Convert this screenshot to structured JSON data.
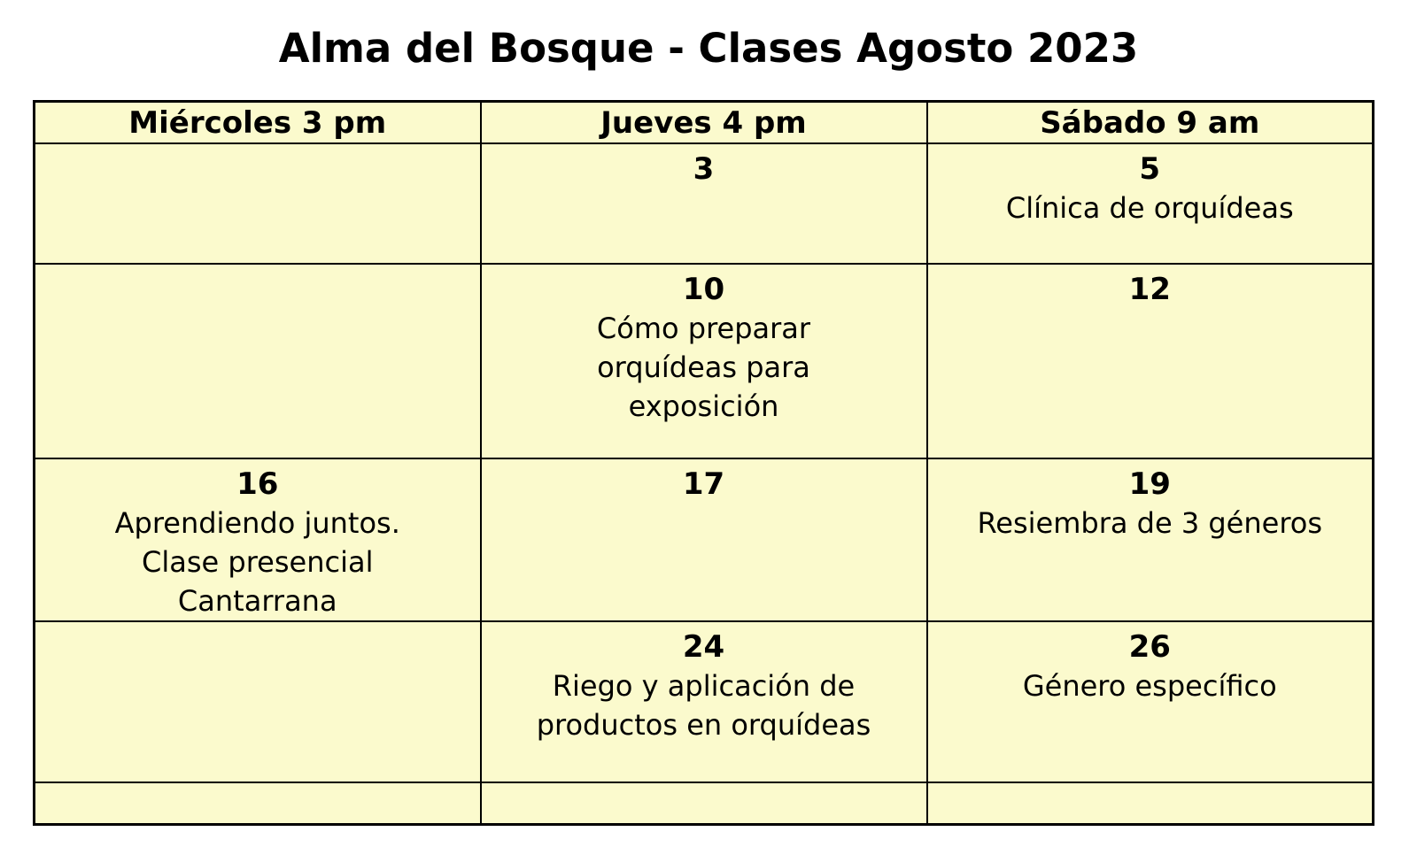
{
  "title": "Alma del Bosque - Clases Agosto 2023",
  "colors": {
    "cell_background": "#FBFACD",
    "border": "#000000",
    "text": "#000000",
    "page_background": "#FFFFFF"
  },
  "table": {
    "headers": [
      "Miércoles 3 pm",
      "Jueves 4 pm",
      "Sábado 9 am"
    ],
    "rows": [
      [
        {
          "date": "",
          "text": ""
        },
        {
          "date": "3",
          "text": ""
        },
        {
          "date": "5",
          "text": "Clínica de orquídeas"
        }
      ],
      [
        {
          "date": "",
          "text": ""
        },
        {
          "date": "10",
          "text": "Cómo preparar\norquídeas para\nexposición"
        },
        {
          "date": "12",
          "text": ""
        }
      ],
      [
        {
          "date": "16",
          "text": "Aprendiendo juntos.\nClase presencial\nCantarrana"
        },
        {
          "date": "17",
          "text": ""
        },
        {
          "date": "19",
          "text": "Resiembra de 3 géneros"
        }
      ],
      [
        {
          "date": "",
          "text": ""
        },
        {
          "date": "24",
          "text": "Riego y aplicación de\nproductos en orquídeas"
        },
        {
          "date": "26",
          "text": "Género específico"
        }
      ],
      [
        {
          "date": "",
          "text": ""
        },
        {
          "date": "",
          "text": ""
        },
        {
          "date": "",
          "text": ""
        }
      ]
    ]
  }
}
